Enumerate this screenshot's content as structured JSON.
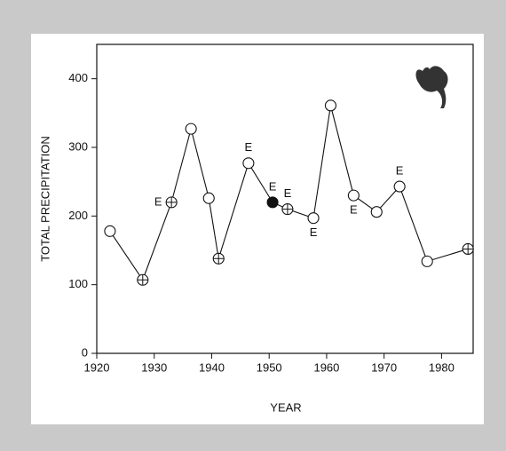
{
  "chart_data": {
    "type": "line",
    "x_label": "YEAR",
    "y_label": "TOTAL PRECIPITATION",
    "x": [
      1922.3,
      1928,
      1933,
      1936.4,
      1939.5,
      1941.2,
      1946.4,
      1950.6,
      1953.2,
      1957.7,
      1960.7,
      1964.7,
      1968.7,
      1972.7,
      1977.5,
      1984.6
    ],
    "values": [
      178,
      107,
      220,
      327,
      226,
      138,
      277,
      220,
      210,
      197,
      361,
      230,
      206,
      243,
      134,
      152
    ],
    "markers": [
      "open",
      "crossed",
      "crossed",
      "open",
      "open",
      "crossed",
      "open",
      "filled",
      "crossed",
      "open",
      "open",
      "open",
      "open",
      "open",
      "open",
      "crossed"
    ],
    "point_labels": [
      null,
      null,
      "E",
      null,
      null,
      null,
      "E",
      "E",
      "E",
      "E",
      null,
      "E",
      null,
      "E",
      null,
      null
    ],
    "label_positions": [
      null,
      null,
      "left",
      null,
      null,
      null,
      "above",
      "above",
      "above",
      "below",
      null,
      "below",
      null,
      "above",
      null,
      null
    ],
    "color": "#111111",
    "xlim": [
      1920,
      1985.5
    ],
    "xticks": [
      1920,
      1930,
      1940,
      1950,
      1960,
      1970,
      1980
    ],
    "ylim": [
      0,
      450
    ],
    "yticks": [
      0,
      100,
      200,
      300,
      400
    ]
  }
}
